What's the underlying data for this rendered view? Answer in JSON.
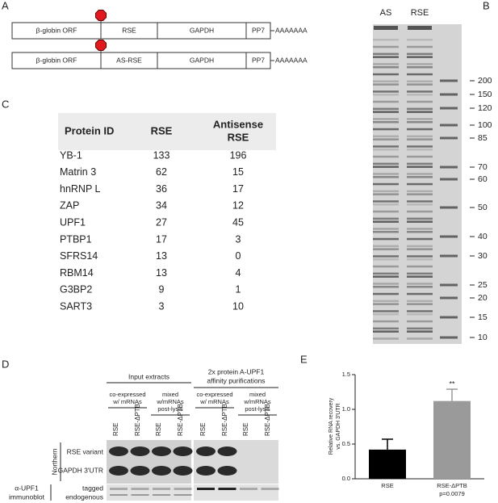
{
  "panel_a": {
    "label": "A",
    "constructs": [
      {
        "parts": [
          "β-globin ORF",
          "RSE",
          "GAPDH",
          "PP7"
        ],
        "tail": "AAAAAAA"
      },
      {
        "parts": [
          "β-globin ORF",
          "AS-RSE",
          "GAPDH",
          "PP7"
        ],
        "tail": "AAAAAAA"
      }
    ]
  },
  "panel_b": {
    "label": "B",
    "lanes": [
      "AS",
      "RSE"
    ],
    "markers": [
      "200",
      "150",
      "120",
      "100",
      "85",
      "70",
      "60",
      "50",
      "40",
      "30",
      "25",
      "20",
      "15",
      "10"
    ]
  },
  "panel_c": {
    "label": "C",
    "highlight_color": "#a52a2a",
    "table": {
      "header": [
        [
          "Protein ID"
        ],
        [
          "RSE"
        ],
        [
          "Antisense",
          "RSE"
        ]
      ],
      "rows": [
        [
          "YB-1",
          "133",
          "196"
        ],
        [
          "Matrin 3",
          "62",
          "15"
        ],
        [
          "hnRNP L",
          "36",
          "17"
        ],
        [
          "ZAP",
          "34",
          "12"
        ],
        [
          "UPF1",
          "27",
          "45"
        ],
        [
          "PTBP1",
          "17",
          "3"
        ],
        [
          "SFRS14",
          "13",
          "0"
        ],
        [
          "RBM14",
          "13",
          "4"
        ],
        [
          "G3BP2",
          "9",
          "1"
        ],
        [
          "SART3",
          "3",
          "10"
        ]
      ],
      "highlight_col": [
        2,
        1,
        1,
        1,
        2,
        1,
        1,
        1,
        1,
        2
      ]
    }
  },
  "panel_d": {
    "label": "D",
    "groups": [
      [
        "Input extracts"
      ],
      [
        "2x protein A-UPF1",
        "affinity purifications"
      ]
    ],
    "conditions": [
      [
        "co-expressed",
        "w/ mRNAs"
      ],
      [
        "mixed",
        "w/mRNAs",
        "post-lysis"
      ]
    ],
    "lanes": [
      "RSE",
      "RSE-ΔPTB"
    ],
    "northern": "Northern",
    "northern_rows": [
      "RSE variant",
      "GAPDH 3'UTR"
    ],
    "immunoblot": [
      "α-UPF1",
      "immunoblot"
    ],
    "immunoblot_rows": [
      "tagged",
      "endogenous"
    ]
  },
  "chart_data": {
    "type": "bar",
    "label": "E",
    "ylabel": [
      "Relative RNA recovery",
      "vs. GAPDH 3'UTR"
    ],
    "categories": [
      "RSE",
      "RSE-ΔPTB"
    ],
    "values": [
      0.42,
      1.12
    ],
    "errors": [
      0.15,
      0.17
    ],
    "colors": [
      "#000000",
      "#9a9a9a"
    ],
    "annotation": "**",
    "note": "p=0.0079",
    "ylim": [
      0,
      1.5
    ],
    "yticks": [
      {
        "value": 0,
        "label": "0.0"
      },
      {
        "value": 0.5,
        "label": "0.5"
      },
      {
        "value": 1,
        "label": "1.0"
      },
      {
        "value": 1.5,
        "label": "1.5"
      }
    ]
  }
}
